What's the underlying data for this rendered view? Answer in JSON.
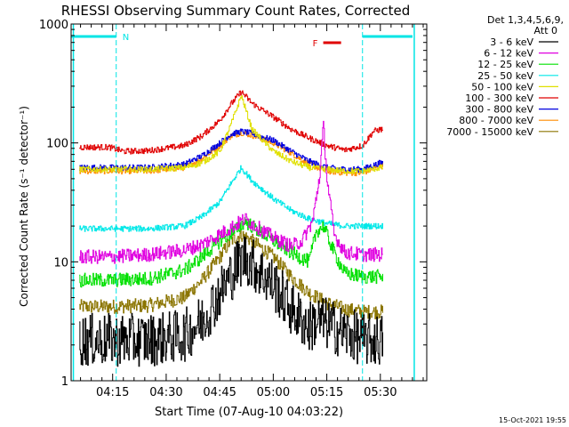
{
  "chart_data": {
    "type": "line",
    "title": "RHESSI Observing Summary Count Rates, Corrected",
    "ylabel": "Corrected Count Rate (s⁻¹ detector⁻¹)",
    "xlabel": "Start Time (07-Aug-10 04:03:22)",
    "y_scale": "log",
    "ylim": [
      1,
      1000
    ],
    "xlim": [
      "04:03:22",
      "05:43:00"
    ],
    "y_ticks": [
      "1",
      "10",
      "100",
      "1000"
    ],
    "x_ticks": [
      "04:15",
      "04:30",
      "04:45",
      "05:00",
      "05:15",
      "05:30"
    ],
    "legend_title": "Det 1,3,4,5,6,9,",
    "legend_subtitle": "Att 0",
    "legend_position": "right",
    "timestamp": "15-Oct-2021 19:55",
    "flag_labels": {
      "night": "N",
      "flare": "F"
    },
    "flag_colors": {
      "night": "#00e5e5",
      "flare": "#e00000"
    },
    "data_windows": [
      [
        "04:05:40",
        "04:15:30"
      ],
      [
        "04:15:30",
        "05:26:00"
      ],
      [
        "05:26:10",
        "05:30:45"
      ]
    ],
    "night_markers": [
      "04:04:00",
      "04:16:00",
      "05:25:00",
      "05:39:30"
    ],
    "flare_flag": [
      "05:14:00",
      "05:19:00"
    ],
    "series": [
      {
        "name": "3 - 6 keV",
        "color": "#000000",
        "x": [
          "04:14:00",
          "04:20:00",
          "04:25:00",
          "04:35:00",
          "04:40:00",
          "04:45:00",
          "04:50:00",
          "04:52:00",
          "04:55:00",
          "05:00:00",
          "05:05:00",
          "05:10:00",
          "05:12:00",
          "05:15:00",
          "05:20:00",
          "05:26:00",
          "05:30:00"
        ],
        "y": [
          2.2,
          2.2,
          2.2,
          2.4,
          3.2,
          5.5,
          9.5,
          11,
          9,
          6.5,
          4,
          2.8,
          3.2,
          3,
          2.5,
          2.2,
          2.2
        ]
      },
      {
        "name": "6 - 12 keV",
        "color": "#e000e0",
        "x": [
          "04:14:00",
          "04:25:00",
          "04:35:00",
          "04:40:00",
          "04:45:00",
          "04:50:00",
          "04:52:00",
          "04:55:00",
          "05:00:00",
          "05:05:00",
          "05:08:00",
          "05:11:00",
          "05:13:00",
          "05:14:00",
          "05:15:00",
          "05:17:00",
          "05:20:00",
          "05:25:00",
          "05:30:00"
        ],
        "y": [
          11,
          11.5,
          12.5,
          14,
          17,
          21,
          23,
          20,
          16,
          13.5,
          15,
          22,
          55,
          140,
          50,
          17,
          12,
          11.5,
          11.5
        ]
      },
      {
        "name": "12 - 25 keV",
        "color": "#00e000",
        "x": [
          "04:14:00",
          "04:25:00",
          "04:35:00",
          "04:40:00",
          "04:45:00",
          "04:50:00",
          "04:52:00",
          "04:55:00",
          "05:00:00",
          "05:05:00",
          "05:10:00",
          "05:12:00",
          "05:14:00",
          "05:17:00",
          "05:20:00",
          "05:25:00",
          "05:30:00"
        ],
        "y": [
          7,
          7.2,
          8.5,
          11,
          15,
          19,
          22,
          19,
          15,
          12,
          10,
          18,
          20,
          12,
          8,
          7.5,
          7.5
        ]
      },
      {
        "name": "25 - 50 keV",
        "color": "#00e8e8",
        "x": [
          "04:14:00",
          "04:25:00",
          "04:35:00",
          "04:40:00",
          "04:45:00",
          "04:48:00",
          "04:51:00",
          "04:54:00",
          "05:00:00",
          "05:05:00",
          "05:10:00",
          "05:15:00",
          "05:20:00",
          "05:25:00",
          "05:30:00"
        ],
        "y": [
          19,
          19,
          20,
          24,
          32,
          45,
          62,
          48,
          34,
          27,
          23,
          21,
          20,
          20,
          20
        ]
      },
      {
        "name": "50 - 100 keV",
        "color": "#e0e000",
        "x": [
          "04:14:00",
          "04:25:00",
          "04:35:00",
          "04:40:00",
          "04:45:00",
          "04:48:00",
          "04:51:00",
          "04:54:00",
          "05:00:00",
          "05:05:00",
          "05:10:00",
          "05:15:00",
          "05:20:00",
          "05:25:00",
          "05:30:00"
        ],
        "y": [
          60,
          60,
          62,
          68,
          85,
          140,
          250,
          130,
          85,
          70,
          62,
          60,
          58,
          58,
          62
        ]
      },
      {
        "name": "100 - 300 keV",
        "color": "#e00000",
        "x": [
          "04:14:00",
          "04:18:00",
          "04:25:00",
          "04:35:00",
          "04:40:00",
          "04:45:00",
          "04:48:00",
          "04:51:00",
          "04:54:00",
          "05:00:00",
          "05:05:00",
          "05:10:00",
          "05:15:00",
          "05:20:00",
          "05:25:00",
          "05:28:00",
          "05:30:00"
        ],
        "y": [
          92,
          85,
          86,
          95,
          115,
          155,
          210,
          270,
          215,
          165,
          130,
          110,
          95,
          87,
          95,
          125,
          130
        ]
      },
      {
        "name": "300 - 800 keV",
        "color": "#0000e0",
        "x": [
          "04:14:00",
          "04:25:00",
          "04:35:00",
          "04:40:00",
          "04:45:00",
          "04:48:00",
          "04:51:00",
          "04:54:00",
          "05:00:00",
          "05:05:00",
          "05:10:00",
          "05:15:00",
          "05:20:00",
          "05:25:00",
          "05:30:00"
        ],
        "y": [
          62,
          62,
          66,
          78,
          100,
          118,
          125,
          120,
          105,
          85,
          70,
          62,
          60,
          60,
          68
        ]
      },
      {
        "name": "800 - 7000 keV",
        "color": "#ff8c00",
        "x": [
          "04:14:00",
          "04:25:00",
          "04:35:00",
          "04:40:00",
          "04:45:00",
          "04:48:00",
          "04:51:00",
          "04:54:00",
          "05:00:00",
          "05:05:00",
          "05:10:00",
          "05:15:00",
          "05:20:00",
          "05:25:00",
          "05:30:00"
        ],
        "y": [
          58,
          58,
          62,
          74,
          95,
          114,
          122,
          116,
          100,
          82,
          66,
          58,
          56,
          56,
          64
        ]
      },
      {
        "name": "7000 - 15000 keV",
        "color": "#8b7500",
        "x": [
          "04:14:00",
          "04:25:00",
          "04:35:00",
          "04:40:00",
          "04:45:00",
          "04:48:00",
          "04:51:00",
          "04:54:00",
          "05:00:00",
          "05:05:00",
          "05:10:00",
          "05:15:00",
          "05:20:00",
          "05:25:00",
          "05:30:00"
        ],
        "y": [
          4.2,
          4.3,
          5,
          7,
          11,
          15,
          17,
          15,
          11,
          7.5,
          5.5,
          4.5,
          4,
          3.8,
          3.8
        ]
      }
    ]
  }
}
